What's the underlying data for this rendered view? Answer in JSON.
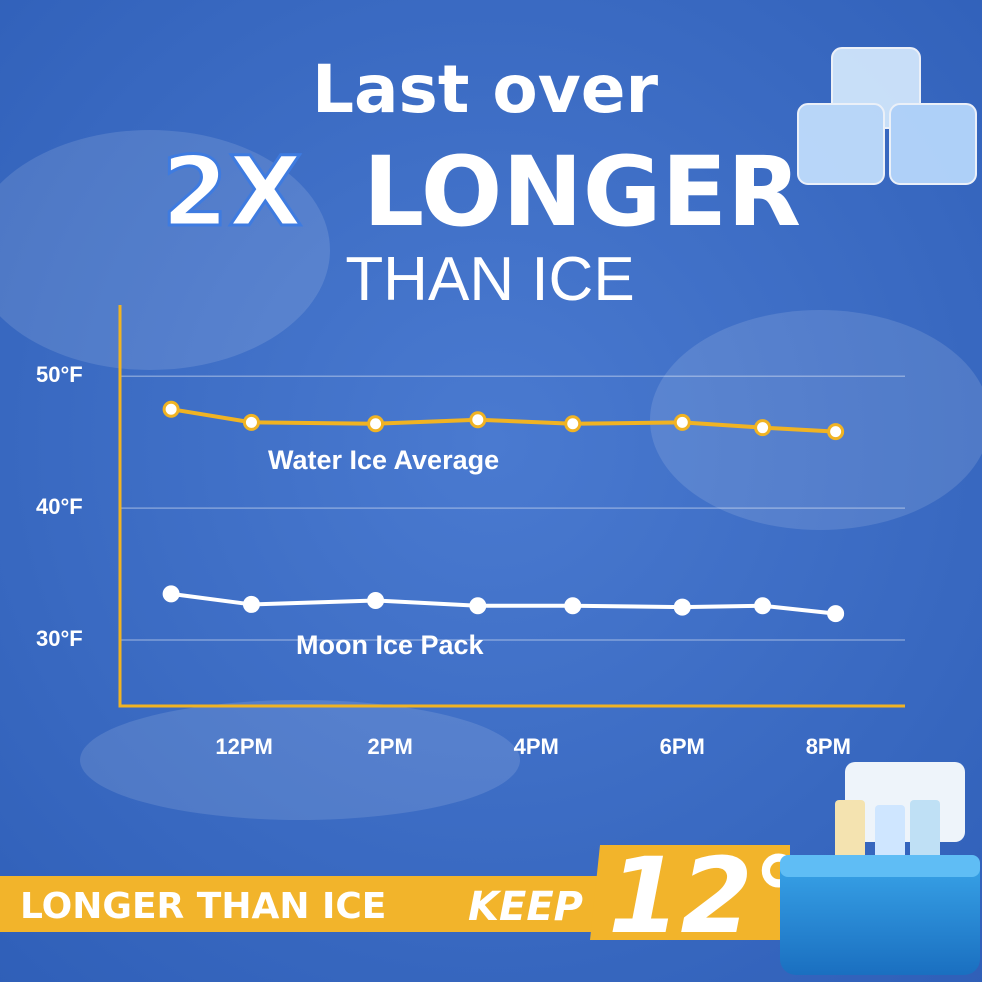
{
  "headline": {
    "line1": "Last over",
    "highlight": "2X",
    "emphasis": "LONGER",
    "line3": "THAN ICE"
  },
  "banner": {
    "left": "LONGER THAN ICE",
    "keep": "KEEP",
    "degrees": "12°"
  },
  "chart_data": {
    "type": "line",
    "x": [
      11,
      12.1,
      13.8,
      15.2,
      16.5,
      18,
      19.1,
      20.1
    ],
    "xlim": [
      10.3,
      21.05
    ],
    "xticks": [
      {
        "value": 12,
        "label": "12PM"
      },
      {
        "value": 14,
        "label": "2PM"
      },
      {
        "value": 16,
        "label": "4PM"
      },
      {
        "value": 18,
        "label": "6PM"
      },
      {
        "value": 20,
        "label": "8PM"
      }
    ],
    "ylim": [
      25,
      55.4
    ],
    "yticks": [
      {
        "value": 30,
        "label": "30°F"
      },
      {
        "value": 40,
        "label": "40°F"
      },
      {
        "value": 50,
        "label": "50°F"
      }
    ],
    "grid": true,
    "axis_color": "#f0b323",
    "series": [
      {
        "name": "Water Ice Average",
        "color": "#f0b323",
        "values": [
          47.5,
          46.5,
          46.4,
          46.7,
          46.4,
          46.5,
          46.1,
          45.8
        ]
      },
      {
        "name": "Moon Ice Pack",
        "color": "#ffffff",
        "values": [
          33.5,
          32.7,
          33.0,
          32.6,
          32.6,
          32.5,
          32.6,
          32.0
        ]
      }
    ]
  }
}
